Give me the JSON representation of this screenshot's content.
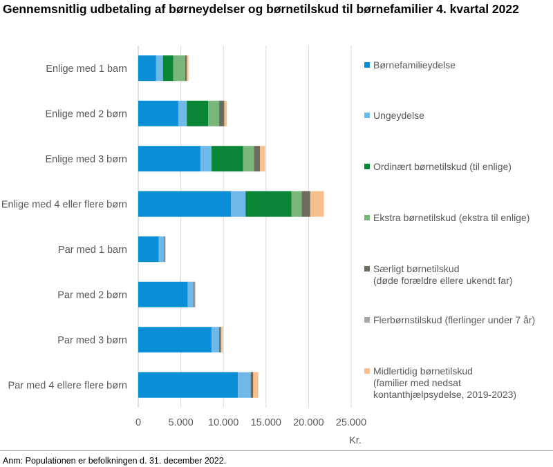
{
  "title": "Gennemsnitlig udbetaling af børneydelser og børnetilskud til børnefamilier 4. kvartal 2022",
  "footnote": "Anm: Populationen er befolkningen d. 31. december 2022.",
  "chart_data": {
    "type": "bar",
    "orientation": "horizontal",
    "stacked": true,
    "title": "Gennemsnitlig udbetaling af børneydelser og børnetilskud til børnefamilier 4. kvartal 2022",
    "xlabel": "Kr.",
    "xlim": [
      0,
      25000
    ],
    "xticks": [
      0,
      5000,
      10000,
      15000,
      20000,
      25000
    ],
    "xtick_labels": [
      "0",
      "5.000",
      "10.000",
      "15.000",
      "20.000",
      "25.000"
    ],
    "grid": "vertical",
    "legend_position": "right",
    "categories": [
      "Enlige med 1 barn",
      "Enlige med 2 børn",
      "Enlige med 3 børn",
      "Enlige med 4 eller flere børn",
      "Par med 1 barn",
      "Par med 2 børn",
      "Par med 3 børn",
      "Par med 4 ellere flere børn"
    ],
    "series": [
      {
        "name": "Børnefamilieydelse",
        "color": "#0a8fd6",
        "values": [
          2100,
          4700,
          7300,
          10900,
          2400,
          5800,
          8600,
          11700
        ]
      },
      {
        "name": "Ungeydelse",
        "color": "#6fb8ea",
        "values": [
          800,
          1000,
          1300,
          1700,
          600,
          700,
          900,
          1500
        ]
      },
      {
        "name": "Ordinært børnetilskud (til enlige)",
        "color": "#0a8636",
        "values": [
          1200,
          2500,
          3700,
          5400,
          0,
          0,
          0,
          0
        ]
      },
      {
        "name": "Ekstra børnetilskud (ekstra til enlige)",
        "color": "#7ab57a",
        "values": [
          1400,
          1300,
          1300,
          1200,
          0,
          0,
          0,
          0
        ]
      },
      {
        "name": "Særligt børnetilskud\n(døde forældre ellere ukendt far)",
        "color": "#6b6b5e",
        "values": [
          200,
          600,
          700,
          1000,
          100,
          100,
          200,
          300
        ]
      },
      {
        "name": "Flerbørnstilskud (flerlinger under 7 år)",
        "color": "#a6a6a6",
        "values": [
          0,
          0,
          0,
          0,
          100,
          100,
          0,
          0
        ]
      },
      {
        "name": "Midlertidig børnetilskud\n(familier med nedsat\nkontanthjælpsydelse, 2019-2023)",
        "color": "#f8c08e",
        "values": [
          200,
          300,
          600,
          1600,
          0,
          0,
          200,
          600
        ]
      }
    ]
  }
}
